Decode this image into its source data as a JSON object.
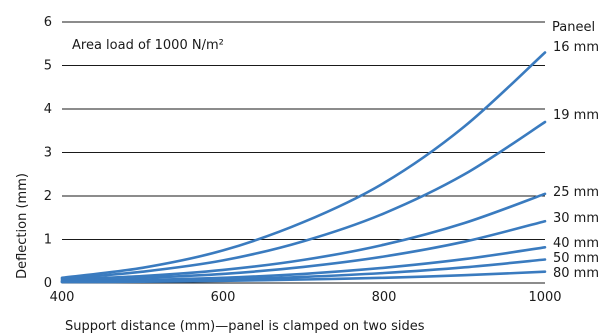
{
  "chart_data": {
    "type": "line",
    "title": "",
    "annotation": "Area load of 1000 N/m²",
    "xlabel": "Support distance (mm)—panel is clamped on two sides",
    "ylabel": "Deflection (mm)",
    "legend_title": "Paneel",
    "xlim": [
      400,
      1000
    ],
    "ylim": [
      0,
      6
    ],
    "xticks": [
      "400",
      "600",
      "800",
      "1000"
    ],
    "yticks": [
      "0",
      "1",
      "2",
      "3",
      "4",
      "5",
      "6"
    ],
    "grid": "horizontal",
    "line_color": "#3a7bbf",
    "x": [
      400,
      500,
      600,
      700,
      800,
      900,
      1000
    ],
    "series": [
      {
        "name": "16 mm",
        "values": [
          0.12,
          0.35,
          0.75,
          1.4,
          2.3,
          3.6,
          5.3
        ]
      },
      {
        "name": "19 mm",
        "values": [
          0.1,
          0.26,
          0.52,
          0.96,
          1.6,
          2.5,
          3.7
        ]
      },
      {
        "name": "25 mm",
        "values": [
          0.08,
          0.16,
          0.3,
          0.53,
          0.88,
          1.38,
          2.05
        ]
      },
      {
        "name": "30 mm",
        "values": [
          0.06,
          0.12,
          0.21,
          0.37,
          0.61,
          0.95,
          1.42
        ]
      },
      {
        "name": "40 mm",
        "values": [
          0.04,
          0.07,
          0.12,
          0.21,
          0.35,
          0.55,
          0.82
        ]
      },
      {
        "name": "50 mm",
        "values": [
          0.03,
          0.05,
          0.08,
          0.14,
          0.23,
          0.36,
          0.54
        ]
      },
      {
        "name": "80 mm",
        "values": [
          0.02,
          0.03,
          0.05,
          0.08,
          0.12,
          0.18,
          0.26
        ]
      }
    ]
  }
}
